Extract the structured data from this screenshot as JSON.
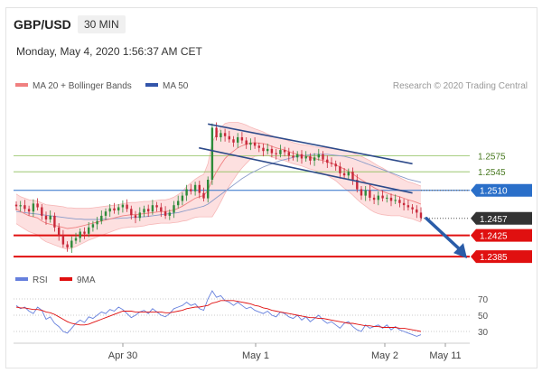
{
  "header": {
    "symbol": "GBP/USD",
    "timeframe": "30 MIN",
    "datetime": "Monday, May 4, 2020 1:56:37 AM CET"
  },
  "legend": {
    "ma20": "MA 20 + Bollinger Bands",
    "ma50": "MA 50",
    "credit": "Research © 2020 Trading Central",
    "rsi": "RSI",
    "rsi_ma": "9MA"
  },
  "colors": {
    "ma20": "#f08080",
    "ma50": "#3355aa",
    "bands_fill": "#fde0e0",
    "up": "#2e8b3a",
    "down": "#c8283a",
    "resistance_green": "#8dbf5a",
    "pivot_blue": "#2a6fc9",
    "support_red": "#e01010",
    "current": "#333333",
    "rsi_line": "#6680dd",
    "rsi_ma_line": "#e01010",
    "arrow": "#2a5ca8"
  },
  "chart_data": [
    {
      "type": "candlestick",
      "x_ticks": [
        "Apr 30",
        "May 1",
        "May 2",
        "May 11"
      ],
      "levels": [
        {
          "value": 1.2575,
          "label": "1.2575",
          "kind": "resistance"
        },
        {
          "value": 1.2545,
          "label": "1.2545",
          "kind": "resistance"
        },
        {
          "value": 1.251,
          "label": "1.2510",
          "kind": "pivot"
        },
        {
          "value": 1.2457,
          "label": "1.2457",
          "kind": "current"
        },
        {
          "value": 1.2425,
          "label": "1.2425",
          "kind": "support"
        },
        {
          "value": 1.2385,
          "label": "1.2385",
          "kind": "support"
        }
      ],
      "ylim": [
        1.2375,
        1.269
      ],
      "close_path": [
        1.248,
        1.2482,
        1.2475,
        1.247,
        1.2485,
        1.2478,
        1.2462,
        1.2455,
        1.2462,
        1.244,
        1.2425,
        1.2408,
        1.2402,
        1.2415,
        1.242,
        1.2432,
        1.2428,
        1.244,
        1.2446,
        1.2452,
        1.2462,
        1.247,
        1.2476,
        1.2472,
        1.2478,
        1.2483,
        1.2475,
        1.2463,
        1.2458,
        1.2468,
        1.2475,
        1.247,
        1.2482,
        1.2478,
        1.247,
        1.2462,
        1.2468,
        1.2482,
        1.249,
        1.25,
        1.2512,
        1.2508,
        1.252,
        1.2505,
        1.2495,
        1.253,
        1.2628,
        1.261,
        1.2618,
        1.2612,
        1.2606,
        1.26,
        1.261,
        1.2604,
        1.2596,
        1.26,
        1.2594,
        1.259,
        1.2584,
        1.2588,
        1.258,
        1.2578,
        1.2586,
        1.2582,
        1.2575,
        1.2572,
        1.2578,
        1.257,
        1.2574,
        1.2566,
        1.2572,
        1.2578,
        1.2568,
        1.2562,
        1.256,
        1.2555,
        1.2542,
        1.2538,
        1.2545,
        1.253,
        1.2512,
        1.25,
        1.251,
        1.2496,
        1.2492,
        1.25,
        1.2495,
        1.2496,
        1.249,
        1.2492,
        1.2486,
        1.2482,
        1.2478,
        1.2474,
        1.2468,
        1.2458
      ],
      "ma20": [
        1.2475,
        1.247,
        1.2466,
        1.2462,
        1.246,
        1.2458,
        1.2452,
        1.2448,
        1.2446,
        1.2444,
        1.2442,
        1.244,
        1.2438,
        1.2439,
        1.244,
        1.2442,
        1.2444,
        1.2446,
        1.2448,
        1.245,
        1.2452,
        1.2454,
        1.2456,
        1.2458,
        1.246,
        1.2462,
        1.2463,
        1.2464,
        1.2464,
        1.2465,
        1.2466,
        1.2467,
        1.2468,
        1.2469,
        1.247,
        1.247,
        1.2471,
        1.2473,
        1.2476,
        1.248,
        1.2485,
        1.249,
        1.2495,
        1.2498,
        1.25,
        1.251,
        1.253,
        1.2545,
        1.2558,
        1.257,
        1.2578,
        1.2584,
        1.259,
        1.2594,
        1.2597,
        1.2599,
        1.26,
        1.2599,
        1.2598,
        1.2596,
        1.2593,
        1.259,
        1.2588,
        1.2586,
        1.2583,
        1.258,
        1.2578,
        1.2576,
        1.2574,
        1.2572,
        1.257,
        1.2568,
        1.2566,
        1.2564,
        1.2561,
        1.2558,
        1.2554,
        1.255,
        1.2546,
        1.2541,
        1.2535,
        1.253,
        1.2525,
        1.252,
        1.2515,
        1.2511,
        1.2508,
        1.2505,
        1.2502,
        1.25,
        1.2498,
        1.2495,
        1.2492,
        1.249,
        1.2487,
        1.2484
      ],
      "band_width": [
        0.0028,
        0.0028,
        0.0029,
        0.003,
        0.0031,
        0.0032,
        0.0034,
        0.0035,
        0.0036,
        0.0037,
        0.0038,
        0.0039,
        0.0039,
        0.0038,
        0.0036,
        0.0034,
        0.0032,
        0.003,
        0.0029,
        0.0028,
        0.0027,
        0.0026,
        0.0025,
        0.0024,
        0.0023,
        0.0023,
        0.0023,
        0.0023,
        0.0023,
        0.0023,
        0.0023,
        0.0022,
        0.0022,
        0.0022,
        0.0022,
        0.0022,
        0.0023,
        0.0024,
        0.0026,
        0.0028,
        0.0032,
        0.0034,
        0.0036,
        0.0038,
        0.004,
        0.005,
        0.007,
        0.0072,
        0.007,
        0.0066,
        0.006,
        0.0054,
        0.0048,
        0.0042,
        0.0036,
        0.003,
        0.0026,
        0.0024,
        0.0022,
        0.002,
        0.002,
        0.002,
        0.002,
        0.002,
        0.002,
        0.002,
        0.002,
        0.002,
        0.0021,
        0.0022,
        0.0022,
        0.0023,
        0.0024,
        0.0026,
        0.0028,
        0.003,
        0.0033,
        0.0036,
        0.0038,
        0.004,
        0.0042,
        0.0044,
        0.0045,
        0.0046,
        0.0046,
        0.0045,
        0.0044,
        0.0042,
        0.004,
        0.0038,
        0.0036,
        0.0035,
        0.0034,
        0.0034,
        0.0034,
        0.0034
      ],
      "ma50": [
        1.247,
        1.2469,
        1.2468,
        1.2467,
        1.2466,
        1.2465,
        1.2464,
        1.2463,
        1.2462,
        1.2461,
        1.246,
        1.2459,
        1.2458,
        1.2457,
        1.2456,
        1.2456,
        1.2455,
        1.2455,
        1.2455,
        1.2455,
        1.2455,
        1.2456,
        1.2456,
        1.2457,
        1.2457,
        1.2458,
        1.2458,
        1.2459,
        1.2459,
        1.246,
        1.246,
        1.2461,
        1.2462,
        1.2463,
        1.2464,
        1.2465,
        1.2466,
        1.2467,
        1.2468,
        1.247,
        1.2472,
        1.2474,
        1.2476,
        1.2478,
        1.248,
        1.2484,
        1.249,
        1.2496,
        1.2502,
        1.2508,
        1.2514,
        1.252,
        1.2526,
        1.2532,
        1.2537,
        1.2542,
        1.2546,
        1.255,
        1.2554,
        1.2557,
        1.256,
        1.2563,
        1.2566,
        1.2568,
        1.257,
        1.2572,
        1.2574,
        1.2575,
        1.2576,
        1.2577,
        1.2578,
        1.2578,
        1.2578,
        1.2578,
        1.2577,
        1.2576,
        1.2575,
        1.2574,
        1.2572,
        1.257,
        1.2567,
        1.2564,
        1.2561,
        1.2558,
        1.2555,
        1.2552,
        1.2549,
        1.2546,
        1.2543,
        1.254,
        1.2537,
        1.2534,
        1.2531,
        1.2529,
        1.2527,
        1.2525
      ],
      "channel": {
        "upper": [
          [
            0,
            1.2635
          ],
          [
            1,
            1.256
          ]
        ],
        "lower": [
          [
            0,
            1.259
          ],
          [
            1,
            1.2505
          ]
        ]
      },
      "projection": {
        "from": 1.2457,
        "to": 1.2385
      }
    },
    {
      "type": "line",
      "ylim": [
        20,
        80
      ],
      "y_ticks": [
        70,
        50,
        30
      ],
      "series": [
        {
          "name": "RSI",
          "values": [
            62,
            58,
            60,
            55,
            52,
            60,
            56,
            45,
            48,
            40,
            36,
            30,
            28,
            34,
            40,
            44,
            41,
            48,
            46,
            50,
            54,
            52,
            57,
            55,
            60,
            57,
            52,
            47,
            50,
            54,
            56,
            52,
            58,
            54,
            50,
            48,
            52,
            58,
            60,
            62,
            66,
            62,
            64,
            58,
            56,
            70,
            80,
            72,
            74,
            68,
            66,
            62,
            66,
            62,
            58,
            60,
            56,
            54,
            52,
            55,
            50,
            48,
            54,
            52,
            48,
            46,
            50,
            44,
            48,
            42,
            46,
            50,
            44,
            40,
            42,
            38,
            34,
            40,
            42,
            36,
            32,
            30,
            38,
            34,
            36,
            38,
            34,
            38,
            32,
            36,
            32,
            30,
            28,
            26,
            24,
            26
          ]
        },
        {
          "name": "9MA",
          "values": [
            60,
            59,
            59,
            58,
            57,
            57,
            56,
            54,
            53,
            51,
            48,
            45,
            42,
            40,
            39,
            38,
            38,
            39,
            41,
            43,
            45,
            47,
            49,
            51,
            53,
            55,
            55,
            55,
            54,
            54,
            54,
            54,
            54,
            54,
            54,
            53,
            53,
            54,
            55,
            56,
            58,
            59,
            60,
            60,
            61,
            62,
            65,
            66,
            68,
            68,
            68,
            68,
            67,
            66,
            65,
            64,
            62,
            61,
            59,
            58,
            56,
            55,
            54,
            53,
            52,
            51,
            50,
            49,
            48,
            47,
            47,
            46,
            46,
            45,
            44,
            43,
            42,
            41,
            40,
            40,
            39,
            38,
            37,
            37,
            36,
            36,
            35,
            35,
            35,
            35,
            34,
            34,
            33,
            32,
            31,
            30
          ]
        }
      ]
    }
  ]
}
